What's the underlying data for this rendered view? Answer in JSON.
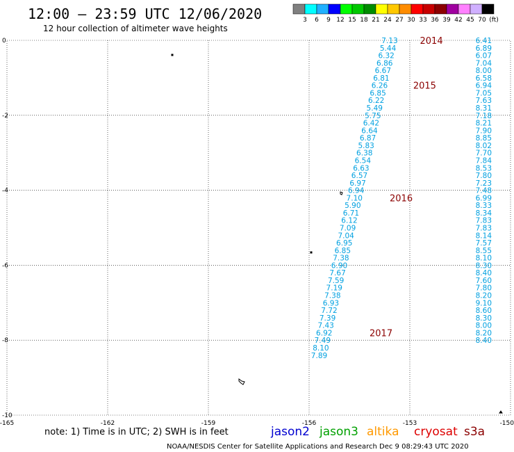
{
  "header": {
    "title": "12:00 – 23:59 UTC 12/06/2020",
    "subtitle": "12 hour collection of altimeter wave heights"
  },
  "colorbar": {
    "colors": [
      "#808080",
      "#00ffff",
      "#20b0ff",
      "#0000ff",
      "#00ff00",
      "#00c800",
      "#008c00",
      "#ffff00",
      "#ffc800",
      "#ff8c00",
      "#ff0000",
      "#c80000",
      "#8c0000",
      "#a000a0",
      "#ff80ff",
      "#d0b0ff",
      "#000000"
    ],
    "labels": [
      "3",
      "6",
      "9",
      "12",
      "15",
      "18",
      "21",
      "24",
      "27",
      "30",
      "33",
      "36",
      "39",
      "42",
      "45",
      "70",
      "(ft)"
    ]
  },
  "chart_data": {
    "type": "scatter",
    "xlim": [
      -165,
      -150
    ],
    "ylim": [
      -10,
      0
    ],
    "xticks": [
      -165,
      -162,
      -159,
      -156,
      -153,
      -150
    ],
    "yticks": [
      0,
      -2,
      -4,
      -6,
      -8,
      -10
    ],
    "xtick_labels": [
      "-165",
      "-162",
      "-159",
      "-156",
      "-153",
      "-150"
    ],
    "ytick_labels": [
      "0",
      "-2",
      "-4",
      "-6",
      "-8",
      "-10"
    ],
    "grid": true,
    "grid_style": "dotted",
    "track_color": "#00a0e0",
    "series": [
      {
        "points": [
          {
            "x": -153.6,
            "y": 0.0,
            "v": "7.13"
          },
          {
            "x": -153.65,
            "y": -0.2,
            "v": "5.44"
          },
          {
            "x": -153.7,
            "y": -0.4,
            "v": "6.32"
          },
          {
            "x": -153.75,
            "y": -0.6,
            "v": "6.86"
          },
          {
            "x": -153.8,
            "y": -0.8,
            "v": "6.67"
          },
          {
            "x": -153.85,
            "y": -1.0,
            "v": "6.81"
          },
          {
            "x": -153.9,
            "y": -1.2,
            "v": "6.26"
          },
          {
            "x": -153.95,
            "y": -1.4,
            "v": "6.85"
          },
          {
            "x": -154.0,
            "y": -1.6,
            "v": "6.22"
          },
          {
            "x": -154.05,
            "y": -1.8,
            "v": "5.49"
          },
          {
            "x": -154.1,
            "y": -2.0,
            "v": "5.75"
          },
          {
            "x": -154.15,
            "y": -2.2,
            "v": "6.42"
          },
          {
            "x": -154.2,
            "y": -2.4,
            "v": "6.64"
          },
          {
            "x": -154.25,
            "y": -2.6,
            "v": "6.87"
          },
          {
            "x": -154.3,
            "y": -2.8,
            "v": "5.83"
          },
          {
            "x": -154.35,
            "y": -3.0,
            "v": "6.38"
          },
          {
            "x": -154.4,
            "y": -3.2,
            "v": "6.54"
          },
          {
            "x": -154.45,
            "y": -3.4,
            "v": "6.63"
          },
          {
            "x": -154.5,
            "y": -3.6,
            "v": "6.57"
          },
          {
            "x": -154.55,
            "y": -3.8,
            "v": "6.97"
          },
          {
            "x": -154.6,
            "y": -4.0,
            "v": "6.94"
          },
          {
            "x": -154.65,
            "y": -4.2,
            "v": "7.10"
          },
          {
            "x": -154.7,
            "y": -4.4,
            "v": "5.90"
          },
          {
            "x": -154.75,
            "y": -4.6,
            "v": "6.71"
          },
          {
            "x": -154.8,
            "y": -4.8,
            "v": "6.12"
          },
          {
            "x": -154.85,
            "y": -5.0,
            "v": "7.09"
          },
          {
            "x": -154.9,
            "y": -5.2,
            "v": "7.04"
          },
          {
            "x": -154.95,
            "y": -5.4,
            "v": "6.95"
          },
          {
            "x": -155.0,
            "y": -5.6,
            "v": "6.85"
          },
          {
            "x": -155.05,
            "y": -5.8,
            "v": "7.38"
          },
          {
            "x": -155.1,
            "y": -6.0,
            "v": "6.90"
          },
          {
            "x": -155.15,
            "y": -6.2,
            "v": "7.67"
          },
          {
            "x": -155.2,
            "y": -6.4,
            "v": "7.59"
          },
          {
            "x": -155.25,
            "y": -6.6,
            "v": "7.19"
          },
          {
            "x": -155.3,
            "y": -6.8,
            "v": "7.38"
          },
          {
            "x": -155.35,
            "y": -7.0,
            "v": "6.93"
          },
          {
            "x": -155.4,
            "y": -7.2,
            "v": "7.72"
          },
          {
            "x": -155.45,
            "y": -7.4,
            "v": "7.39"
          },
          {
            "x": -155.5,
            "y": -7.6,
            "v": "7.43"
          },
          {
            "x": -155.55,
            "y": -7.8,
            "v": "6.92"
          },
          {
            "x": -155.6,
            "y": -8.0,
            "v": "7.49"
          },
          {
            "x": -155.65,
            "y": -8.2,
            "v": "8.10"
          },
          {
            "x": -155.7,
            "y": -8.4,
            "v": "7.89"
          }
        ]
      },
      {
        "points": [
          {
            "x": -150.8,
            "y": 0.0,
            "v": "6.41"
          },
          {
            "x": -150.8,
            "y": -0.2,
            "v": "6.89"
          },
          {
            "x": -150.8,
            "y": -0.4,
            "v": "6.07"
          },
          {
            "x": -150.8,
            "y": -0.6,
            "v": "7.04"
          },
          {
            "x": -150.8,
            "y": -0.8,
            "v": "8.00"
          },
          {
            "x": -150.8,
            "y": -1.0,
            "v": "6.58"
          },
          {
            "x": -150.8,
            "y": -1.2,
            "v": "6.94"
          },
          {
            "x": -150.8,
            "y": -1.4,
            "v": "7.05"
          },
          {
            "x": -150.8,
            "y": -1.6,
            "v": "7.63"
          },
          {
            "x": -150.8,
            "y": -1.8,
            "v": "8.31"
          },
          {
            "x": -150.8,
            "y": -2.0,
            "v": "7.18"
          },
          {
            "x": -150.8,
            "y": -2.2,
            "v": "8.21"
          },
          {
            "x": -150.8,
            "y": -2.4,
            "v": "7.90"
          },
          {
            "x": -150.8,
            "y": -2.6,
            "v": "8.85"
          },
          {
            "x": -150.8,
            "y": -2.8,
            "v": "8.02"
          },
          {
            "x": -150.8,
            "y": -3.0,
            "v": "7.70"
          },
          {
            "x": -150.8,
            "y": -3.2,
            "v": "7.84"
          },
          {
            "x": -150.8,
            "y": -3.4,
            "v": "8.53"
          },
          {
            "x": -150.8,
            "y": -3.6,
            "v": "7.80"
          },
          {
            "x": -150.8,
            "y": -3.8,
            "v": "7.23"
          },
          {
            "x": -150.8,
            "y": -4.0,
            "v": "7.48"
          },
          {
            "x": -150.8,
            "y": -4.2,
            "v": "6.99"
          },
          {
            "x": -150.8,
            "y": -4.4,
            "v": "8.33"
          },
          {
            "x": -150.8,
            "y": -4.6,
            "v": "8.34"
          },
          {
            "x": -150.8,
            "y": -4.8,
            "v": "7.83"
          },
          {
            "x": -150.8,
            "y": -5.0,
            "v": "7.83"
          },
          {
            "x": -150.8,
            "y": -5.2,
            "v": "8.14"
          },
          {
            "x": -150.8,
            "y": -5.4,
            "v": "7.57"
          },
          {
            "x": -150.8,
            "y": -5.6,
            "v": "8.55"
          },
          {
            "x": -150.8,
            "y": -5.8,
            "v": "8.10"
          },
          {
            "x": -150.8,
            "y": -6.0,
            "v": "8.30"
          },
          {
            "x": -150.8,
            "y": -6.2,
            "v": "8.40"
          },
          {
            "x": -150.8,
            "y": -6.4,
            "v": "7.60"
          },
          {
            "x": -150.8,
            "y": -6.6,
            "v": "7.80"
          },
          {
            "x": -150.8,
            "y": -6.8,
            "v": "8.20"
          },
          {
            "x": -150.8,
            "y": -7.0,
            "v": "9.10"
          },
          {
            "x": -150.8,
            "y": -7.2,
            "v": "8.60"
          },
          {
            "x": -150.8,
            "y": -7.4,
            "v": "8.30"
          },
          {
            "x": -150.8,
            "y": -7.6,
            "v": "8.00"
          },
          {
            "x": -150.8,
            "y": -7.8,
            "v": "8.20"
          },
          {
            "x": -150.8,
            "y": -8.0,
            "v": "8.40"
          }
        ]
      }
    ],
    "year_labels": [
      {
        "x": -152.7,
        "y": 0.0,
        "text": "2014"
      },
      {
        "x": -152.9,
        "y": -1.2,
        "text": "2015"
      },
      {
        "x": -153.6,
        "y": -4.2,
        "text": "2016"
      },
      {
        "x": -154.2,
        "y": -7.8,
        "text": "2017"
      }
    ]
  },
  "footer": {
    "note": "note:  1) Time is in UTC;  2) SWH is in feet",
    "legend": [
      {
        "text": "jason2",
        "color": "#0000d0"
      },
      {
        "text": "jason3",
        "color": "#00a000"
      },
      {
        "text": "altika",
        "color": "#ff9900"
      },
      {
        "text": "cryosat",
        "color": "#dd0000"
      },
      {
        "text": "s3a",
        "color": "#8b0000"
      }
    ],
    "credit": "NOAA/NESDIS Center for Satellite Applications and Research    Dec  9 08:29:43 UTC 2020"
  }
}
